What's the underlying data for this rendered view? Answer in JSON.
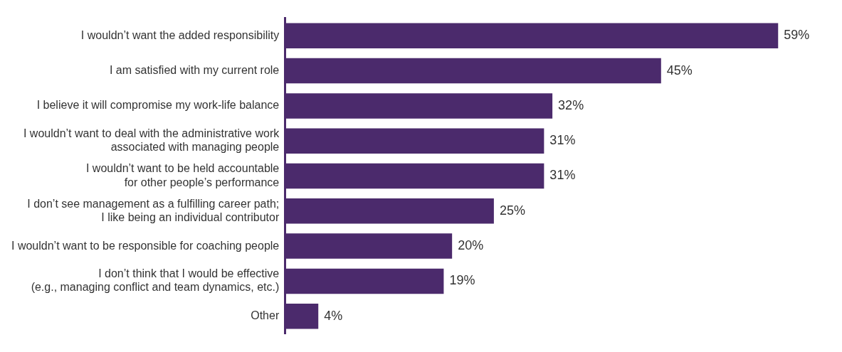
{
  "chart_data": {
    "type": "bar",
    "orientation": "horizontal",
    "categories": [
      "I wouldn’t want the added responsibility",
      "I am satisfied with my current role",
      "I believe it will compromise my work-life balance",
      "I wouldn’t want to deal with the administrative work\nassociated with managing people",
      "I wouldn’t want to be held accountable\nfor other people’s performance",
      "I don’t see management as a fulfilling career path;\nI like being an individual contributor",
      "I wouldn’t want to be responsible for coaching people",
      "I don’t think that I would be effective\n(e.g., managing conflict and team dynamics, etc.)",
      "Other"
    ],
    "values": [
      59,
      45,
      32,
      31,
      31,
      25,
      20,
      19,
      4
    ],
    "value_labels": [
      "59%",
      "45%",
      "32%",
      "31%",
      "31%",
      "25%",
      "20%",
      "19%",
      "4%"
    ],
    "color": "#4b2a6c",
    "legend": false
  }
}
